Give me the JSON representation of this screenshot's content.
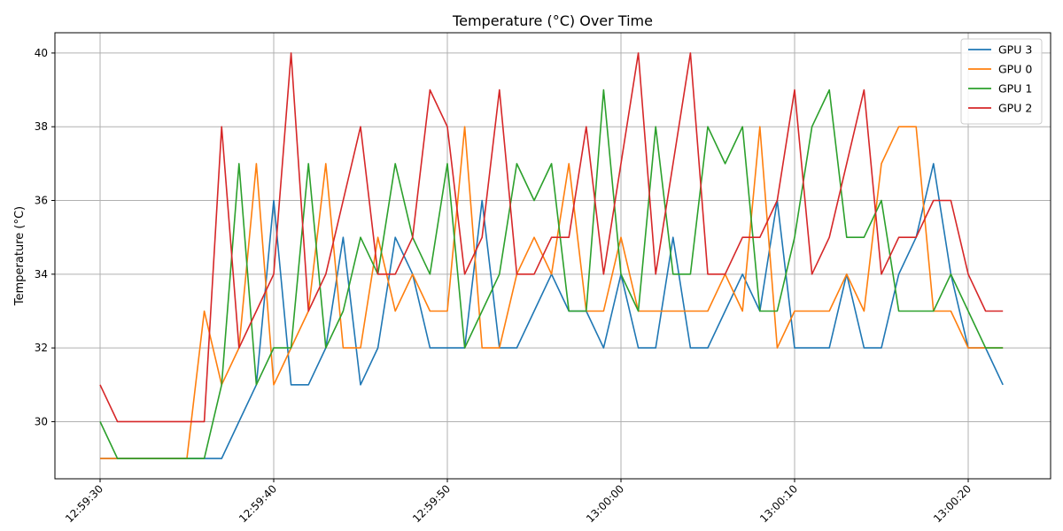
{
  "chart_data": {
    "type": "line",
    "title": "Temperature (°C) Over Time",
    "xlabel": "",
    "ylabel": "Temperature (°C)",
    "x_start": "12:59:30",
    "x_ticks": [
      "12:59:30",
      "12:59:40",
      "12:59:50",
      "13:00:00",
      "13:00:10",
      "13:00:20"
    ],
    "y_ticks": [
      30,
      32,
      34,
      36,
      38,
      40
    ],
    "ylim": [
      28.45,
      40.55
    ],
    "grid": true,
    "legend_position": "top-right",
    "series": [
      {
        "name": "GPU 3",
        "color": "#1f77b4",
        "values": [
          29,
          29,
          29,
          29,
          29,
          29,
          29,
          29,
          30,
          31,
          36,
          31,
          31,
          32,
          35,
          31,
          32,
          35,
          34,
          32,
          32,
          32,
          36,
          32,
          32,
          33,
          34,
          33,
          33,
          32,
          34,
          32,
          32,
          35,
          32,
          32,
          33,
          34,
          33,
          36,
          32,
          32,
          32,
          34,
          32,
          32,
          34,
          35,
          37,
          34,
          32,
          32,
          31
        ]
      },
      {
        "name": "GPU 0",
        "color": "#ff7f0e",
        "values": [
          29,
          29,
          29,
          29,
          29,
          29,
          33,
          31,
          32,
          37,
          31,
          32,
          33,
          37,
          32,
          32,
          35,
          33,
          34,
          33,
          33,
          38,
          32,
          32,
          34,
          35,
          34,
          37,
          33,
          33,
          35,
          33,
          33,
          33,
          33,
          33,
          34,
          33,
          38,
          32,
          33,
          33,
          33,
          34,
          33,
          37,
          38,
          38,
          33,
          33,
          32,
          32,
          32
        ]
      },
      {
        "name": "GPU 1",
        "color": "#2ca02c",
        "values": [
          30,
          29,
          29,
          29,
          29,
          29,
          29,
          31,
          37,
          31,
          32,
          32,
          37,
          32,
          33,
          35,
          34,
          37,
          35,
          34,
          37,
          32,
          33,
          34,
          37,
          36,
          37,
          33,
          33,
          39,
          34,
          33,
          38,
          34,
          34,
          38,
          37,
          38,
          33,
          33,
          35,
          38,
          39,
          35,
          35,
          36,
          33,
          33,
          33,
          34,
          33,
          32,
          32
        ]
      },
      {
        "name": "GPU 2",
        "color": "#d62728",
        "values": [
          31,
          30,
          30,
          30,
          30,
          30,
          30,
          38,
          32,
          33,
          34,
          40,
          33,
          34,
          36,
          38,
          34,
          34,
          35,
          39,
          38,
          34,
          35,
          39,
          34,
          34,
          35,
          35,
          38,
          34,
          37,
          40,
          34,
          37,
          40,
          34,
          34,
          35,
          35,
          36,
          39,
          34,
          35,
          37,
          39,
          34,
          35,
          35,
          36,
          36,
          34,
          33,
          33
        ]
      }
    ]
  }
}
